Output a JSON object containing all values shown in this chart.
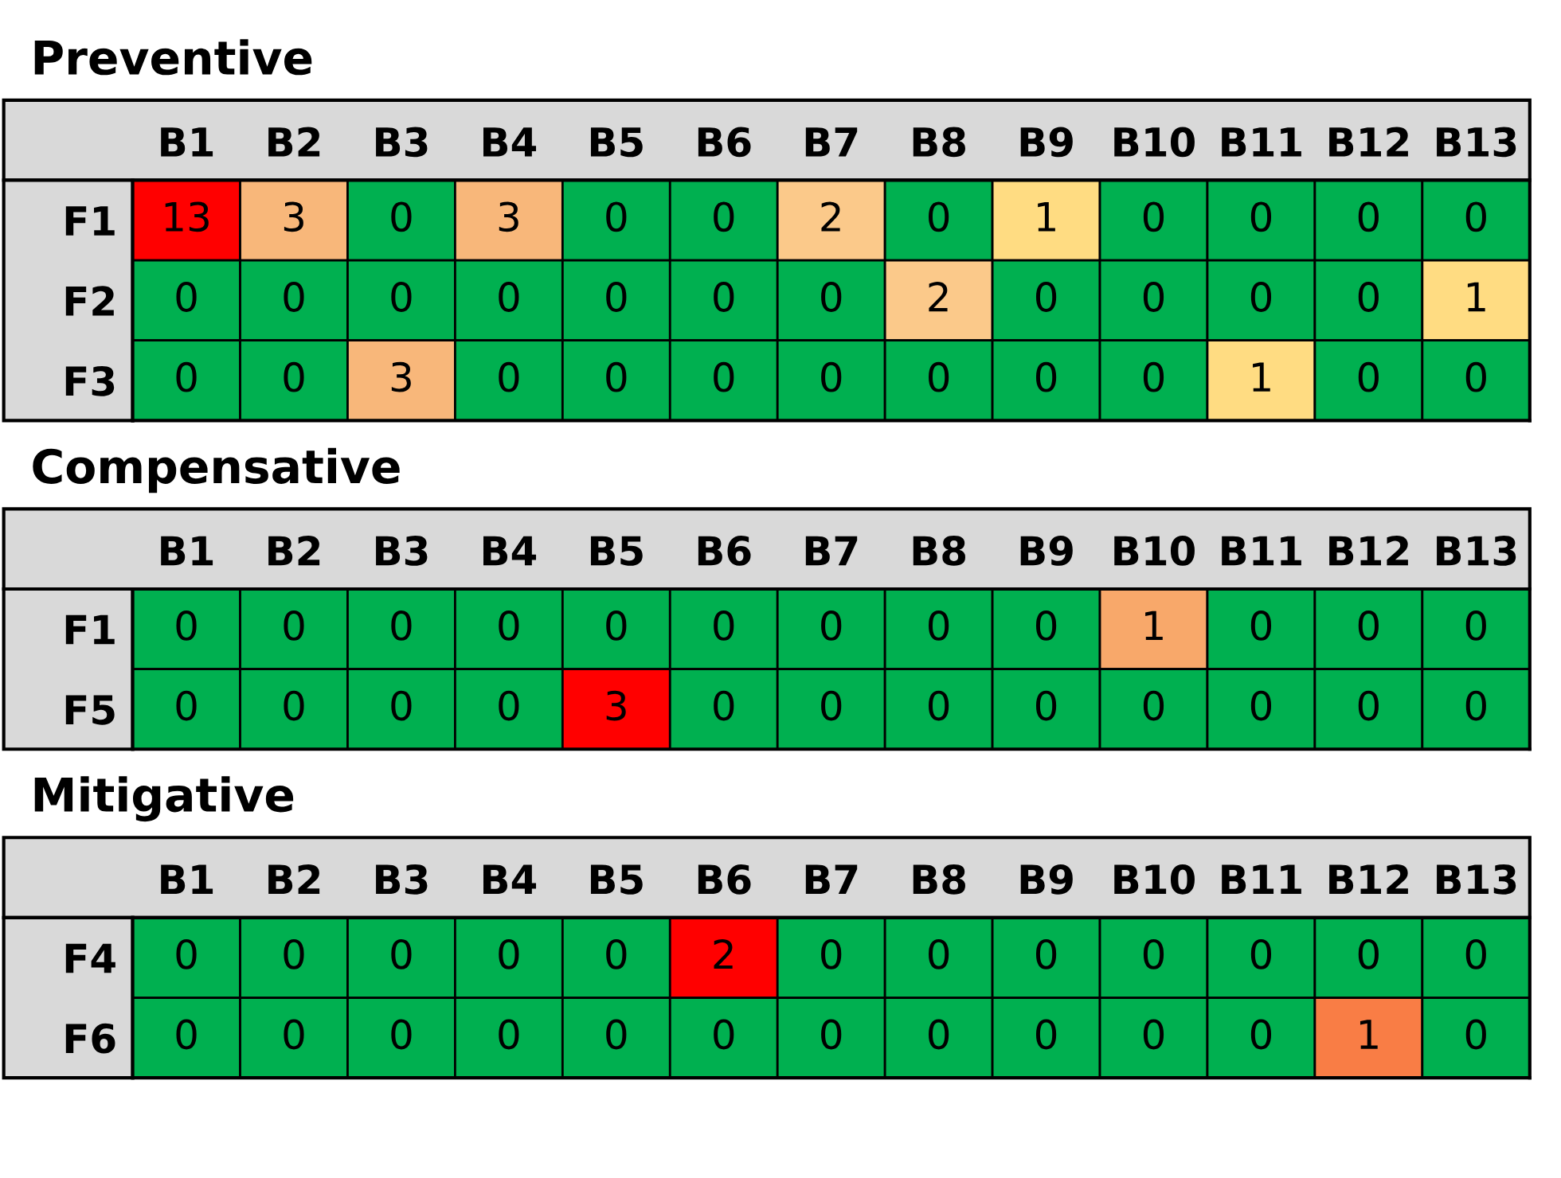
{
  "chart_data": [
    {
      "type": "heatmap",
      "title": "Preventive",
      "categories": [
        "B1",
        "B2",
        "B3",
        "B4",
        "B5",
        "B6",
        "B7",
        "B8",
        "B9",
        "B10",
        "B11",
        "B12",
        "B13"
      ],
      "y_categories": [
        "F1",
        "F2",
        "F3"
      ],
      "cells": [
        [
          13,
          3,
          0,
          3,
          0,
          0,
          2,
          0,
          1,
          0,
          0,
          0,
          0
        ],
        [
          0,
          0,
          0,
          0,
          0,
          0,
          0,
          2,
          0,
          0,
          0,
          0,
          1
        ],
        [
          0,
          0,
          3,
          0,
          0,
          0,
          0,
          0,
          0,
          0,
          1,
          0,
          0
        ]
      ],
      "colors": [
        [
          "#ff0000",
          "#f8b77a",
          "#00b050",
          "#f8b77a",
          "#00b050",
          "#00b050",
          "#fbc98a",
          "#00b050",
          "#ffdc82",
          "#00b050",
          "#00b050",
          "#00b050",
          "#00b050"
        ],
        [
          "#00b050",
          "#00b050",
          "#00b050",
          "#00b050",
          "#00b050",
          "#00b050",
          "#00b050",
          "#fbc98a",
          "#00b050",
          "#00b050",
          "#00b050",
          "#00b050",
          "#ffdc82"
        ],
        [
          "#00b050",
          "#00b050",
          "#f8b77a",
          "#00b050",
          "#00b050",
          "#00b050",
          "#00b050",
          "#00b050",
          "#00b050",
          "#00b050",
          "#ffdc82",
          "#00b050",
          "#00b050"
        ]
      ],
      "data_labels": true
    },
    {
      "type": "heatmap",
      "title": "Compensative",
      "categories": [
        "B1",
        "B2",
        "B3",
        "B4",
        "B5",
        "B6",
        "B7",
        "B8",
        "B9",
        "B10",
        "B11",
        "B12",
        "B13"
      ],
      "y_categories": [
        "F1",
        "F5"
      ],
      "cells": [
        [
          0,
          0,
          0,
          0,
          0,
          0,
          0,
          0,
          0,
          1,
          0,
          0,
          0
        ],
        [
          0,
          0,
          0,
          0,
          3,
          0,
          0,
          0,
          0,
          0,
          0,
          0,
          0
        ]
      ],
      "colors": [
        [
          "#00b050",
          "#00b050",
          "#00b050",
          "#00b050",
          "#00b050",
          "#00b050",
          "#00b050",
          "#00b050",
          "#00b050",
          "#f8a86a",
          "#00b050",
          "#00b050",
          "#00b050"
        ],
        [
          "#00b050",
          "#00b050",
          "#00b050",
          "#00b050",
          "#ff0000",
          "#00b050",
          "#00b050",
          "#00b050",
          "#00b050",
          "#00b050",
          "#00b050",
          "#00b050",
          "#00b050"
        ]
      ],
      "data_labels": true
    },
    {
      "type": "heatmap",
      "title": "Mitigative",
      "categories": [
        "B1",
        "B2",
        "B3",
        "B4",
        "B5",
        "B6",
        "B7",
        "B8",
        "B9",
        "B10",
        "B11",
        "B12",
        "B13"
      ],
      "y_categories": [
        "F4",
        "F6"
      ],
      "cells": [
        [
          0,
          0,
          0,
          0,
          0,
          2,
          0,
          0,
          0,
          0,
          0,
          0,
          0
        ],
        [
          0,
          0,
          0,
          0,
          0,
          0,
          0,
          0,
          0,
          0,
          0,
          1,
          0
        ]
      ],
      "colors": [
        [
          "#00b050",
          "#00b050",
          "#00b050",
          "#00b050",
          "#00b050",
          "#ff0000",
          "#00b050",
          "#00b050",
          "#00b050",
          "#00b050",
          "#00b050",
          "#00b050",
          "#00b050"
        ],
        [
          "#00b050",
          "#00b050",
          "#00b050",
          "#00b050",
          "#00b050",
          "#00b050",
          "#00b050",
          "#00b050",
          "#00b050",
          "#00b050",
          "#00b050",
          "#f97d45",
          "#00b050"
        ]
      ],
      "data_labels": true
    }
  ]
}
